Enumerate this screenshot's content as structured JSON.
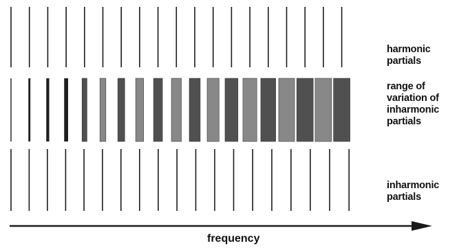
{
  "labels": {
    "harmonic": [
      "harmonic",
      "partials"
    ],
    "range": [
      "range of",
      "variation of",
      "inharmonic",
      "partials"
    ],
    "inharmonic": [
      "inharmonic",
      "partials"
    ],
    "frequency": "frequency"
  },
  "harmonic_partial_count": 19,
  "colors": {
    "ink": "#1a1a1a",
    "band_dark": "#505050",
    "band_light": "#888888"
  }
}
